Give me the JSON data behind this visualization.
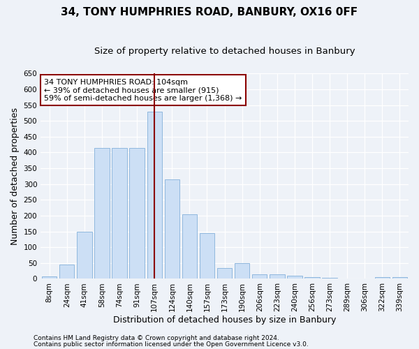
{
  "title": "34, TONY HUMPHRIES ROAD, BANBURY, OX16 0FF",
  "subtitle": "Size of property relative to detached houses in Banbury",
  "xlabel": "Distribution of detached houses by size in Banbury",
  "ylabel": "Number of detached properties",
  "categories": [
    "8sqm",
    "24sqm",
    "41sqm",
    "58sqm",
    "74sqm",
    "91sqm",
    "107sqm",
    "124sqm",
    "140sqm",
    "157sqm",
    "173sqm",
    "190sqm",
    "206sqm",
    "223sqm",
    "240sqm",
    "256sqm",
    "273sqm",
    "289sqm",
    "306sqm",
    "322sqm",
    "339sqm"
  ],
  "values": [
    8,
    45,
    150,
    415,
    415,
    415,
    530,
    315,
    205,
    145,
    35,
    50,
    15,
    15,
    10,
    5,
    3,
    2,
    2,
    5,
    5
  ],
  "bar_color": "#ccdff5",
  "bar_edge_color": "#90b8de",
  "vline_x_index": 6,
  "vline_color": "#8b0000",
  "annotation_text": "34 TONY HUMPHRIES ROAD: 104sqm\n← 39% of detached houses are smaller (915)\n59% of semi-detached houses are larger (1,368) →",
  "annotation_box_color": "#ffffff",
  "annotation_box_edge_color": "#8b0000",
  "ylim": [
    0,
    650
  ],
  "yticks": [
    0,
    50,
    100,
    150,
    200,
    250,
    300,
    350,
    400,
    450,
    500,
    550,
    600,
    650
  ],
  "background_color": "#eef2f8",
  "grid_color": "#ffffff",
  "footer_line1": "Contains HM Land Registry data © Crown copyright and database right 2024.",
  "footer_line2": "Contains public sector information licensed under the Open Government Licence v3.0.",
  "title_fontsize": 11,
  "subtitle_fontsize": 9.5,
  "axis_label_fontsize": 9,
  "tick_fontsize": 7.5,
  "annotation_fontsize": 8,
  "footer_fontsize": 6.5
}
